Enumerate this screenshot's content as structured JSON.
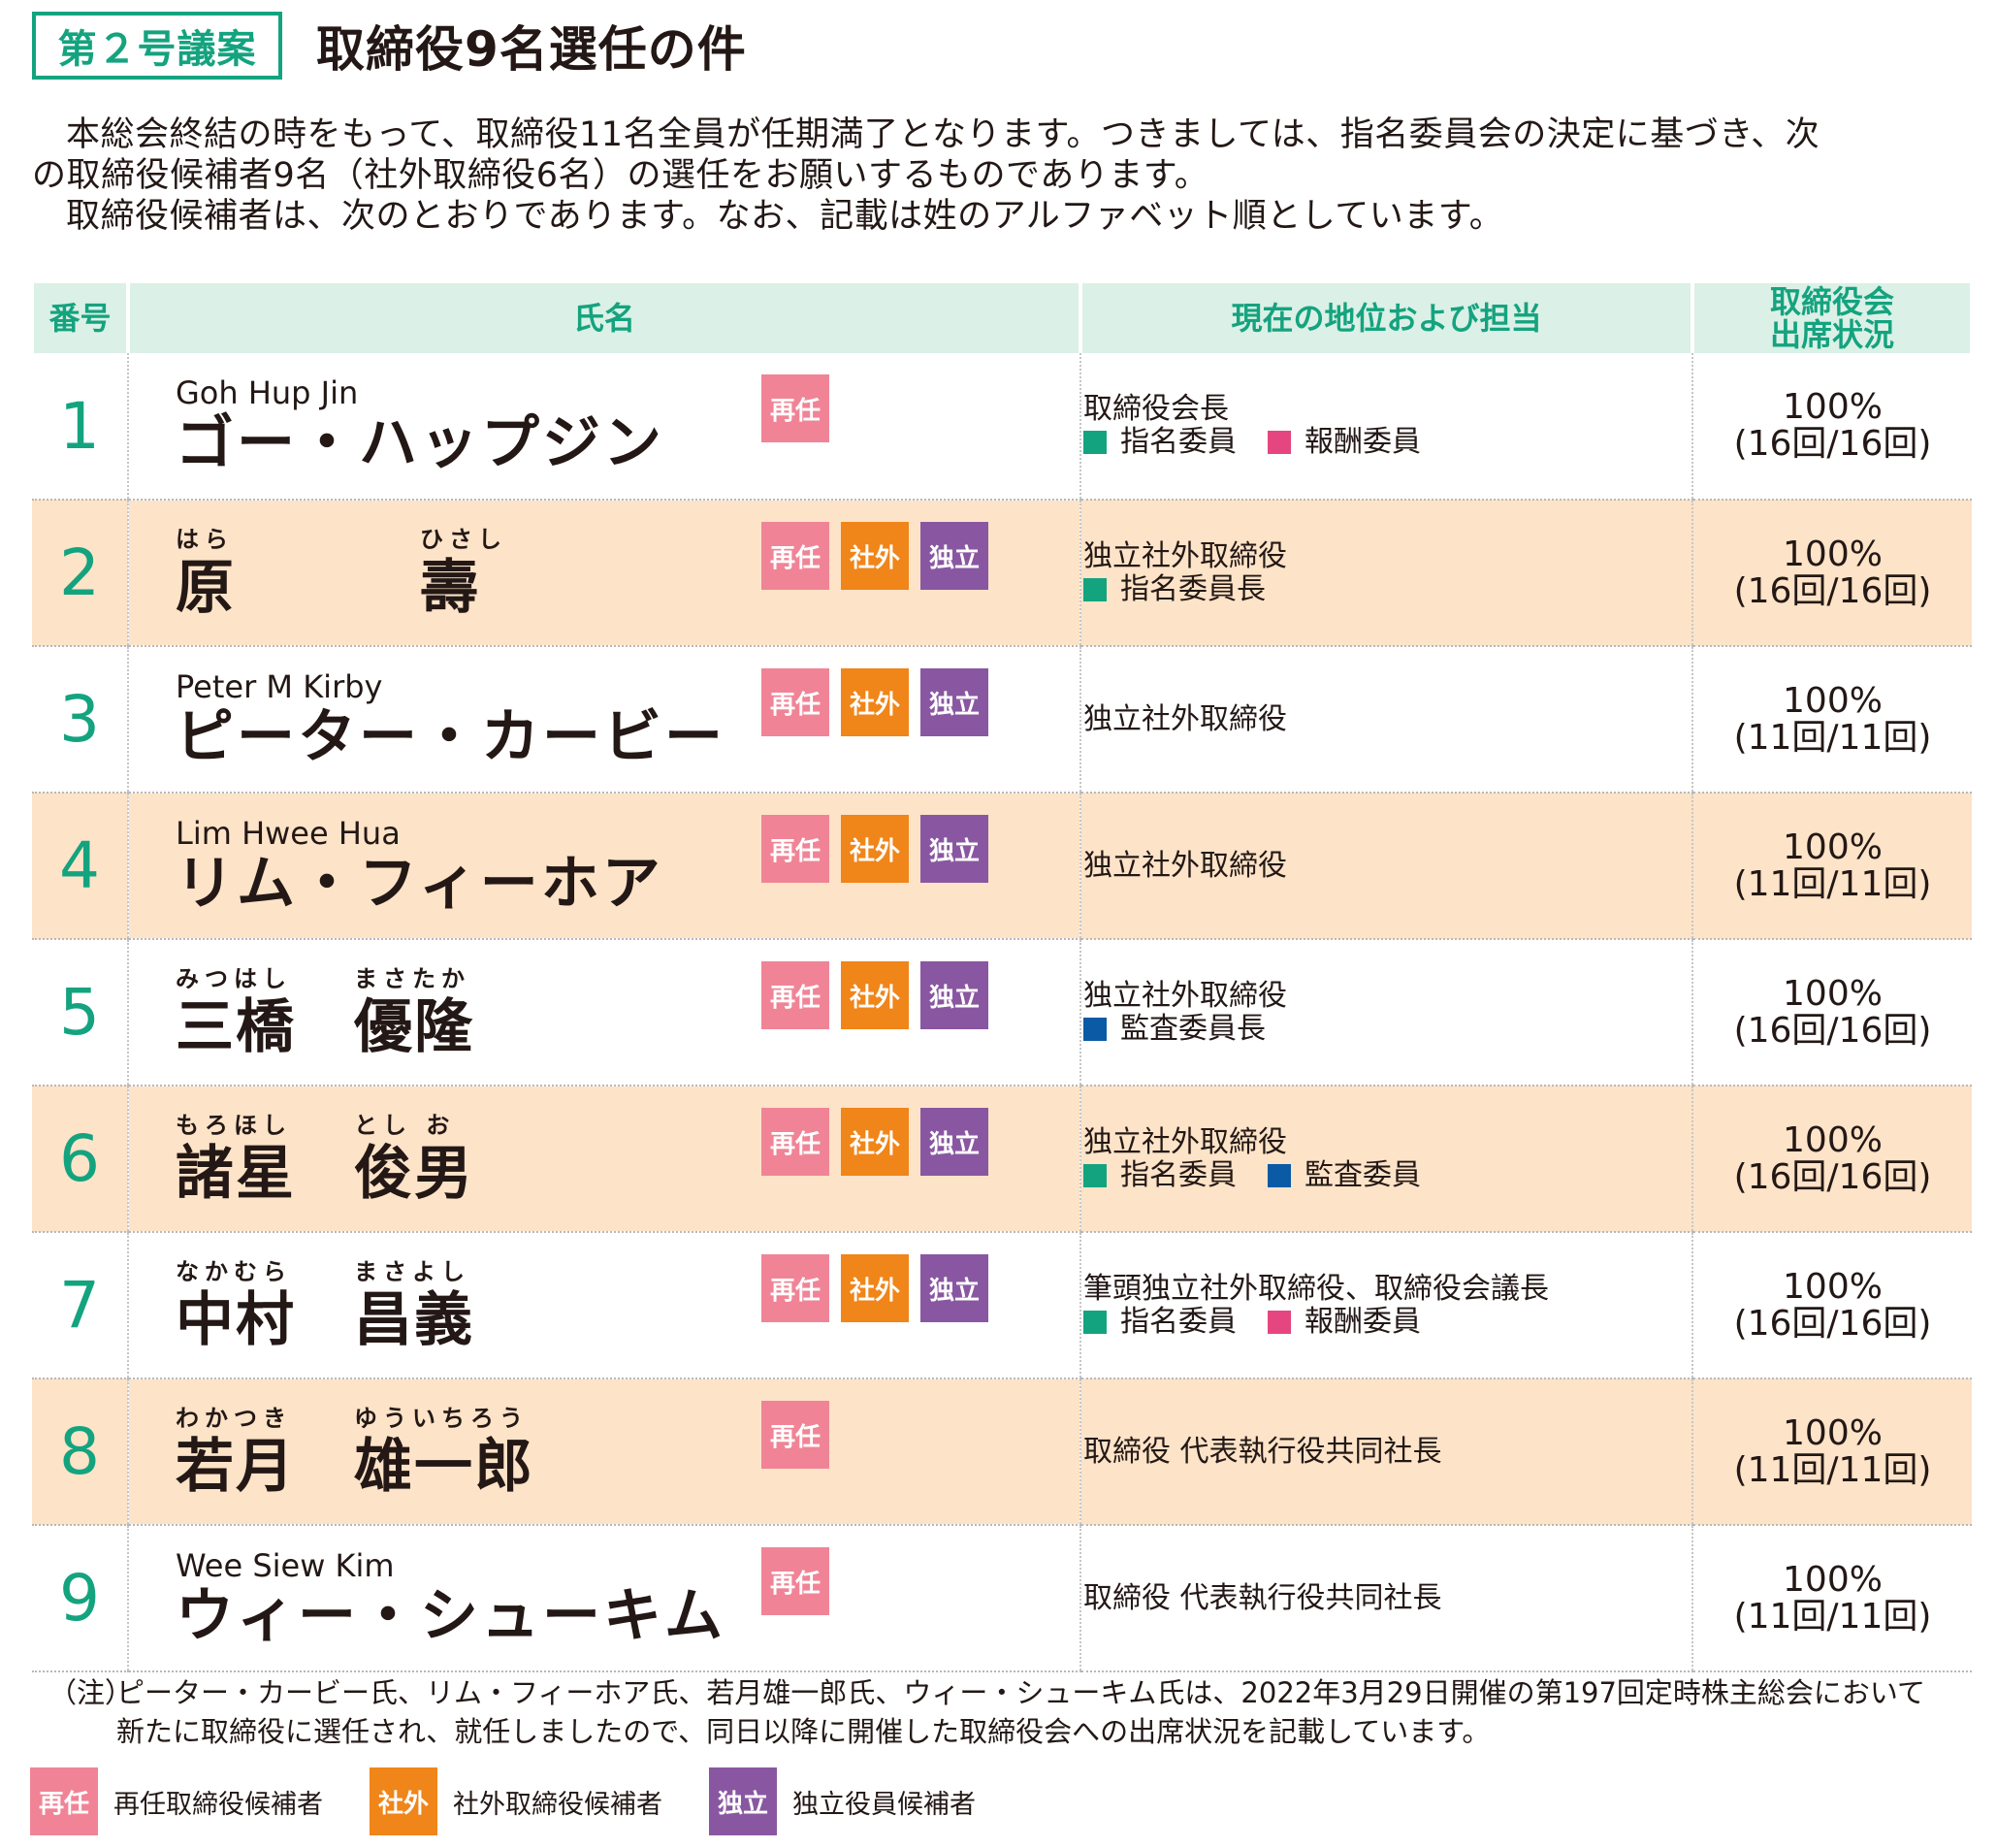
{
  "header": {
    "badge": "第２号議案",
    "title": "取締役9名選任の件"
  },
  "intro": {
    "line1": "本総会終結の時をもって、取締役11名全員が任期満了となります。つきましては、指名委員会の決定に基づき、次",
    "line2": "の取締役候補者9名（社外取締役6名）の選任をお願いするものであります。",
    "line3": "取締役候補者は、次のとおりであります。なお、記載は姓のアルファベット順としています。"
  },
  "table": {
    "headers": {
      "number": "番号",
      "name": "氏名",
      "position": "現在の地位および担当",
      "attendance_line1": "取締役会",
      "attendance_line2": "出席状況"
    },
    "tag_labels": {
      "reappoint": "再任",
      "outside": "社外",
      "independent": "独立"
    },
    "rows": [
      {
        "number": "1",
        "romaji": "Goh Hup Jin",
        "kana": "ゴー・ハップジン",
        "position": "取締役会長",
        "roles": [
          "指名委員",
          "報酬委員"
        ],
        "attendance_pct": "100%",
        "attendance_count": "(16回/16回)"
      },
      {
        "number": "2",
        "family_furigana": "はら",
        "family_kanji": "原",
        "given_furigana": "ひさし",
        "given_kanji": "壽",
        "position": "独立社外取締役",
        "roles": [
          "指名委員長"
        ],
        "attendance_pct": "100%",
        "attendance_count": "(16回/16回)"
      },
      {
        "number": "3",
        "romaji": "Peter M Kirby",
        "kana": "ピーター・カービー",
        "position": "独立社外取締役",
        "attendance_pct": "100%",
        "attendance_count": "(11回/11回)"
      },
      {
        "number": "4",
        "romaji": "Lim Hwee Hua",
        "kana": "リム・フィーホア",
        "position": "独立社外取締役",
        "attendance_pct": "100%",
        "attendance_count": "(11回/11回)"
      },
      {
        "number": "5",
        "family_furigana": "みつはし",
        "family_kanji": "三橋",
        "given_furigana": "まさたか",
        "given_kanji": "優隆",
        "position": "独立社外取締役",
        "roles": [
          "監査委員長"
        ],
        "attendance_pct": "100%",
        "attendance_count": "(16回/16回)"
      },
      {
        "number": "6",
        "family_furigana": "もろほし",
        "family_kanji": "諸星",
        "given_furigana": "とし お",
        "given_kanji": "俊男",
        "position": "独立社外取締役",
        "roles": [
          "指名委員",
          "監査委員"
        ],
        "attendance_pct": "100%",
        "attendance_count": "(16回/16回)"
      },
      {
        "number": "7",
        "family_furigana": "なかむら",
        "family_kanji": "中村",
        "given_furigana": "まさよし",
        "given_kanji": "昌義",
        "position": "筆頭独立社外取締役、取締役会議長",
        "roles": [
          "指名委員",
          "報酬委員"
        ],
        "attendance_pct": "100%",
        "attendance_count": "(16回/16回)"
      },
      {
        "number": "8",
        "family_furigana": "わかつき",
        "family_kanji": "若月",
        "given_furigana": "ゆういちろう",
        "given_kanji": "雄一郎",
        "position": "取締役 代表執行役共同社長",
        "attendance_pct": "100%",
        "attendance_count": "(11回/11回)"
      },
      {
        "number": "9",
        "romaji": "Wee Siew Kim",
        "kana": "ウィー・シューキム",
        "position": "取締役 代表執行役共同社長",
        "attendance_pct": "100%",
        "attendance_count": "(11回/11回)"
      }
    ]
  },
  "colors": {
    "accent_green": "#14a37f",
    "header_bg": "#dbf0e6",
    "alt_row_bg": "#fde3c8",
    "reappoint": "#f08496",
    "outside": "#f08519",
    "independent": "#8957a1",
    "role_green": "#14a37f",
    "role_pink": "#e5467f",
    "role_blue": "#0b5aa5"
  },
  "note": {
    "label": "（注）",
    "line1": "ピーター・カービー氏、リム・フィーホア氏、若月雄一郎氏、ウィー・シューキム氏は、2022年3月29日開催の第197回定時株主総会において",
    "line2": "新たに取締役に選任され、就任しましたので、同日以降に開催した取締役会への出席状況を記載しています。"
  },
  "legend": {
    "reappoint": "再任取締役候補者",
    "outside": "社外取締役候補者",
    "independent": "独立役員候補者"
  }
}
